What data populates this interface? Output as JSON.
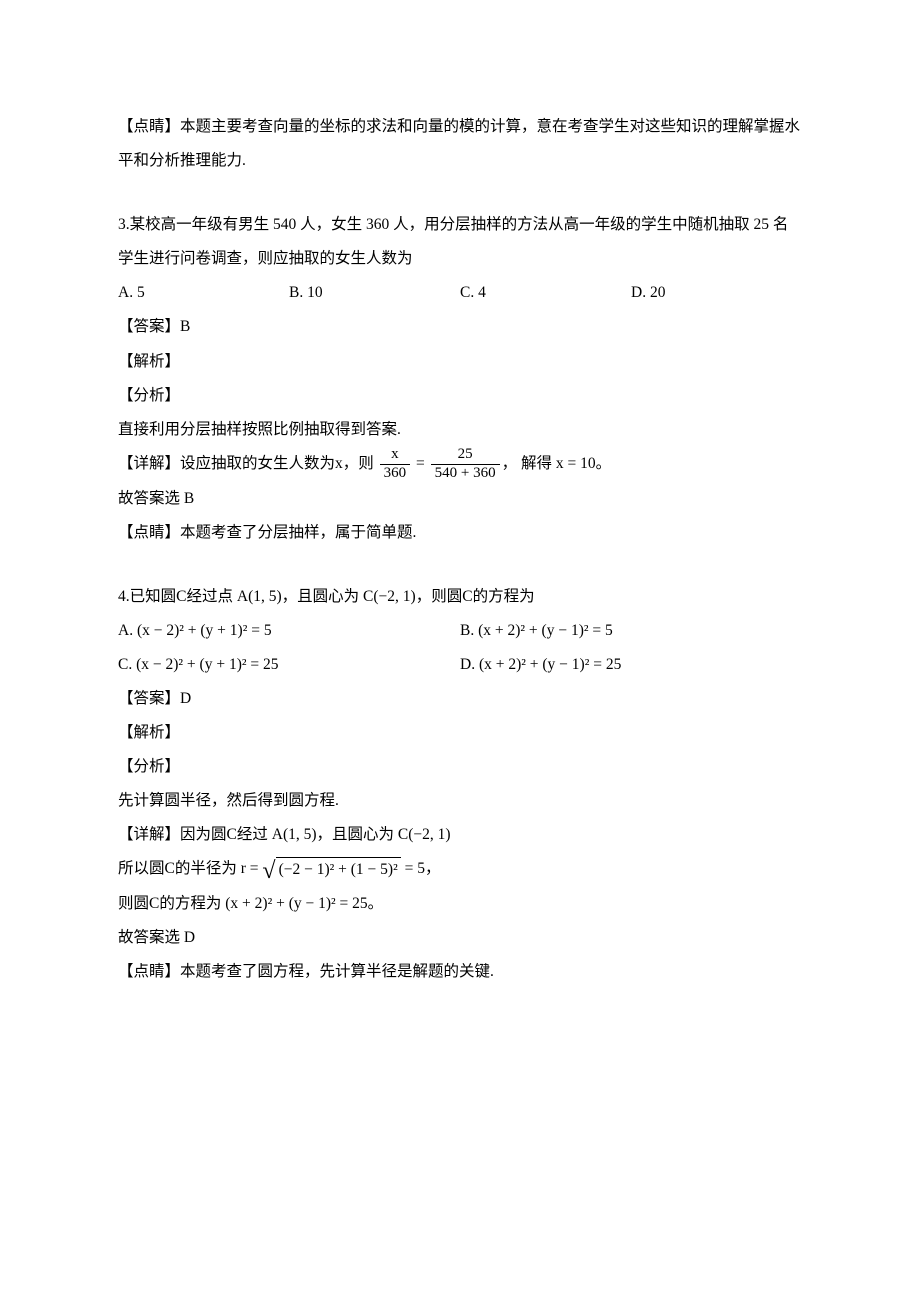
{
  "q2_remark": "【点睛】本题主要考查向量的坐标的求法和向量的模的计算，意在考查学生对这些知识的理解掌握水平和分析推理能力.",
  "q3": {
    "stem": "3.某校高一年级有男生 540 人，女生 360 人，用分层抽样的方法从高一年级的学生中随机抽取 25 名学生进行问卷调查，则应抽取的女生人数为",
    "opts": {
      "A": "A.  5",
      "B": "B.  10",
      "C": "C.  4",
      "D": "D.  20"
    },
    "answer": "【答案】B",
    "jiexi": "【解析】",
    "fenxi": "【分析】",
    "fenxi_body": "直接利用分层抽样按照比例抽取得到答案.",
    "detail_head": "【详解】设应抽取的女生人数为",
    "detail_var": "x",
    "detail_mid1": "，则",
    "frac1_num": "x",
    "frac1_den": "360",
    "eq": "=",
    "frac2_num": "25",
    "frac2_den": "540 + 360",
    "detail_mid2": "， 解得",
    "solve": "x = 10",
    "period": "。",
    "select": "故答案选 B",
    "remark": "【点睛】本题考查了分层抽样，属于简单题."
  },
  "q4": {
    "stem1": "4.已知圆",
    "C": "C",
    "stem2": "经过点",
    "A": "A(1, 5)",
    "stem3": "，且圆心为",
    "Cctr": "C(−2, 1)",
    "stem4": "，则圆",
    "stem5": "的方程为",
    "opts": {
      "A": "A.  (x − 2)² + (y + 1)² = 5",
      "B": "B.  (x + 2)² + (y − 1)² = 5",
      "C": "C.  (x − 2)² + (y + 1)² = 25",
      "D": "D.  (x + 2)² + (y − 1)² = 25"
    },
    "answer": "【答案】D",
    "jiexi": "【解析】",
    "fenxi": "【分析】",
    "fenxi_body": "先计算圆半径，然后得到圆方程.",
    "detail_head": "【详解】因为圆",
    "detail_mid1": "经过",
    "detail_mid2": "，且圆心为",
    "radius_line1": "所以圆",
    "radius_line2": "的半径为",
    "r_eq": "r =",
    "rad": "(−2 − 1)² + (1 − 5)²",
    "r_eq_rhs": "= 5",
    "r_comma": "，",
    "eq_line1": "则圆",
    "eq_line2": "的方程为",
    "eq_expr": "(x + 2)² + (y − 1)² = 25",
    "eq_period": "。",
    "select": "故答案选 D",
    "remark": "【点睛】本题考查了圆方程，先计算半径是解题的关键."
  }
}
